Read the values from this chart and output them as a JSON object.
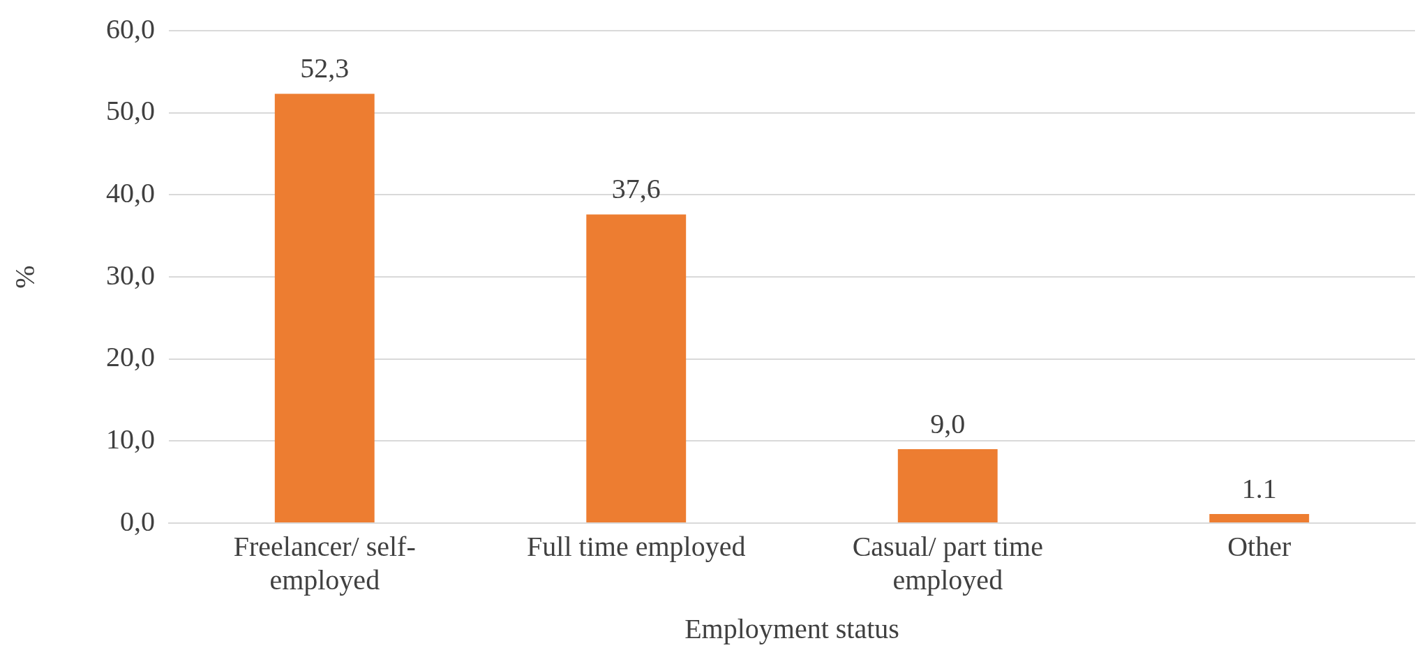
{
  "chart_data": {
    "type": "bar",
    "xlabel": "Employment status",
    "ylabel": "%",
    "categories": [
      "Freelancer/ self-employed",
      "Full time employed",
      "Casual/ part time employed",
      "Other"
    ],
    "values": [
      52.3,
      37.6,
      9.0,
      1.1
    ],
    "value_labels": [
      "52,3",
      "37,6",
      "9,0",
      "1.1"
    ],
    "color": "#ed7d31",
    "ylim": [
      0,
      60
    ],
    "yticks": [
      {
        "value": 0,
        "label": "0,0"
      },
      {
        "value": 10,
        "label": "10,0"
      },
      {
        "value": 20,
        "label": "20,0"
      },
      {
        "value": 30,
        "label": "30,0"
      },
      {
        "value": 40,
        "label": "40,0"
      },
      {
        "value": 50,
        "label": "50,0"
      },
      {
        "value": 60,
        "label": "60,0"
      }
    ],
    "grid": "y",
    "legend": false
  }
}
